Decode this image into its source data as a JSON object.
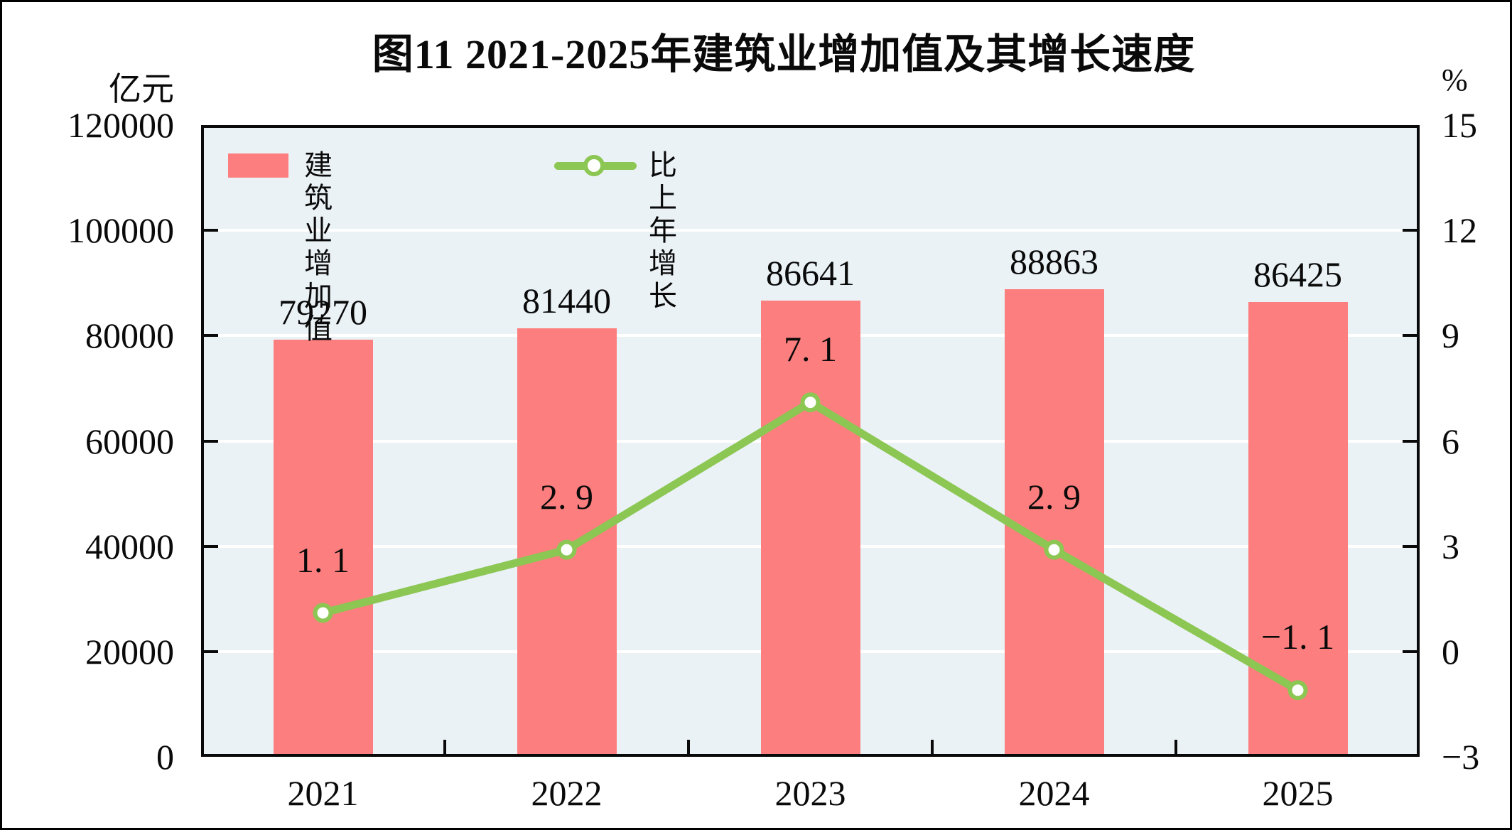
{
  "figure": {
    "title": "图11  2021-2025年建筑业增加值及其增长速度",
    "left_axis_unit_label": "亿元",
    "right_axis_unit_label": "%"
  },
  "legend": {
    "items": [
      {
        "label": "建筑业增加值",
        "marker": "bar-swatch",
        "color": "#fd7e7e"
      },
      {
        "label": "比上年增长",
        "marker": "line-with-circle",
        "color": "#8cc653"
      }
    ]
  },
  "chart_data": {
    "type": "bar",
    "subtype": "combo-bar-line-dual-axis",
    "title": "图11  2021-2025年建筑业增加值及其增长速度",
    "categories": [
      "2021",
      "2022",
      "2023",
      "2024",
      "2025"
    ],
    "series": [
      {
        "name": "建筑业增加值",
        "type": "bar",
        "axis": "left",
        "unit": "亿元",
        "values": [
          79270,
          81440,
          86641,
          88863,
          86425
        ],
        "data_labels": [
          "79270",
          "81440",
          "86641",
          "88863",
          "86425"
        ],
        "color": "#fd7e7e"
      },
      {
        "name": "比上年增长",
        "type": "line",
        "axis": "right",
        "unit": "%",
        "values": [
          1.1,
          2.9,
          7.1,
          2.9,
          -1.1
        ],
        "data_labels": [
          "1. 1",
          "2. 9",
          "7. 1",
          "2. 9",
          "−1. 1"
        ],
        "color": "#8cc653",
        "marker": "circle-white-fill"
      }
    ],
    "left_axis": {
      "label": "亿元",
      "min": 0,
      "max": 120000,
      "tick_step": 20000,
      "tick_labels": [
        "120000",
        "100000",
        "80000",
        "60000",
        "40000",
        "20000",
        "0"
      ]
    },
    "right_axis": {
      "label": "%",
      "min": -3,
      "max": 15,
      "tick_step": 3,
      "tick_labels": [
        "15",
        "12",
        "9",
        "6",
        "3",
        "0",
        "−3"
      ]
    },
    "grid": {
      "horizontal_gridlines": true,
      "gridline_color": "#ffffff"
    },
    "plot_background": "#eaf2f6",
    "legend_position": "top-left-inside"
  }
}
